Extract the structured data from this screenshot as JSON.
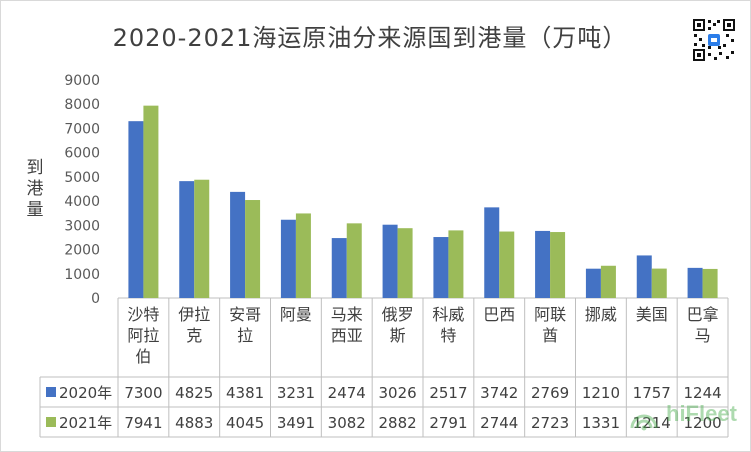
{
  "page": {
    "title": "2020-2021海运原油分来源国到港量（万吨）"
  },
  "watermark": {
    "brand": "hiFleet"
  },
  "chart_data": {
    "type": "bar",
    "title": "2020-2021海运原油分来源国到港量（万吨）",
    "xlabel": "",
    "ylabel": "到港量",
    "ylim": [
      0,
      9000
    ],
    "yticks": [
      0,
      1000,
      2000,
      3000,
      4000,
      5000,
      6000,
      7000,
      8000,
      9000
    ],
    "grid": false,
    "legend_placement": "data-table-left",
    "categories": [
      "沙特阿拉伯",
      "伊拉克",
      "安哥拉",
      "阿曼",
      "马来西亚",
      "俄罗斯",
      "科威特",
      "巴西",
      "阿联酋",
      "挪威",
      "美国",
      "巴拿马"
    ],
    "category_lines": [
      [
        "沙特",
        "阿拉",
        "伯"
      ],
      [
        "伊拉",
        "克"
      ],
      [
        "安哥",
        "拉"
      ],
      [
        "阿曼"
      ],
      [
        "马来",
        "西亚"
      ],
      [
        "俄罗",
        "斯"
      ],
      [
        "科威",
        "特"
      ],
      [
        "巴西"
      ],
      [
        "阿联",
        "酋"
      ],
      [
        "挪威"
      ],
      [
        "美国"
      ],
      [
        "巴拿",
        "马"
      ]
    ],
    "series": [
      {
        "name": "2020年",
        "color": "#4472c4",
        "values": [
          7300,
          4825,
          4381,
          3231,
          2474,
          3026,
          2517,
          3742,
          2769,
          1210,
          1757,
          1244
        ]
      },
      {
        "name": "2021年",
        "color": "#9bbb59",
        "values": [
          7941,
          4883,
          4045,
          3491,
          3082,
          2882,
          2791,
          2744,
          2723,
          1331,
          1214,
          1200
        ]
      }
    ]
  }
}
